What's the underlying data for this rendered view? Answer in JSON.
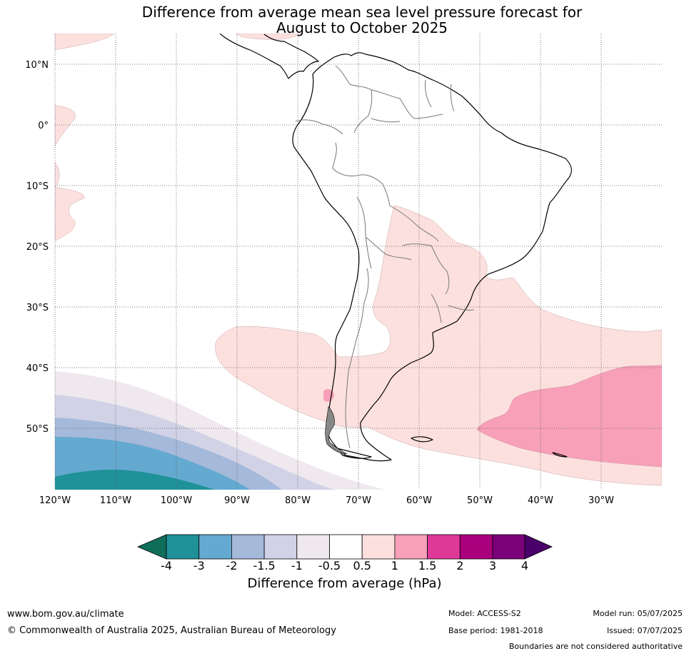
{
  "title_line1": "Difference from average mean sea level pressure forecast for",
  "title_line2": "August to October 2025",
  "latitude_labels": [
    "10°N",
    "0°",
    "10°S",
    "20°S",
    "30°S",
    "40°S",
    "50°S"
  ],
  "longitude_labels": [
    "120°W",
    "110°W",
    "100°W",
    "90°W",
    "80°W",
    "70°W",
    "60°W",
    "50°W",
    "40°W",
    "30°W"
  ],
  "colorbar": {
    "title": "Difference from average (hPa)",
    "tick_labels": [
      "-4",
      "-3",
      "-2",
      "-1.5",
      "-1",
      "-0.5",
      "0.5",
      "1",
      "1.5",
      "2",
      "3",
      "4"
    ],
    "colors": [
      "#0f6e5a",
      "#1f9198",
      "#64a9cf",
      "#a5b9da",
      "#d1d2e6",
      "#efe9ef",
      "#ffffff",
      "#fce0de",
      "#f8a0b8",
      "#de3898",
      "#ab007e",
      "#7a0178",
      "#4a006a"
    ]
  },
  "footer": {
    "url": "www.bom.gov.au/climate",
    "copyright": "© Commonwealth of Australia 2025, Australian Bureau of Meteorology",
    "model": "Model: ACCESS-S2",
    "base_period": "Base period: 1981-2018",
    "model_run": "Model run: 05/07/2025",
    "issued": "Issued: 07/07/2025",
    "disclaimer": "Boundaries are not considered authoritative"
  }
}
